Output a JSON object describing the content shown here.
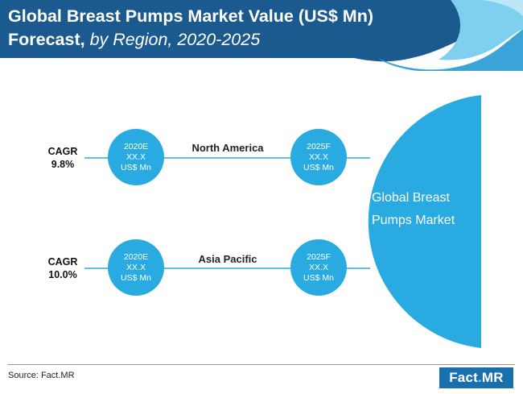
{
  "title": {
    "line1": "Global Breast Pumps Market Value (US$ Mn)",
    "line2_bold": "Forecast,",
    "line2_italic": " by Region, 2020-2025"
  },
  "market": {
    "label_line1": "Global Breast",
    "label_line2": "Pumps Market"
  },
  "rows": [
    {
      "region": "North America",
      "cagr_label": "CAGR",
      "cagr_value": "9.8%",
      "start": {
        "year": "2020E",
        "value": "XX.X",
        "unit": "US$ Mn"
      },
      "end": {
        "year": "2025F",
        "value": "XX.X",
        "unit": "US$ Mn"
      }
    },
    {
      "region": "Asia Pacific",
      "cagr_label": "CAGR",
      "cagr_value": "10.0%",
      "start": {
        "year": "2020E",
        "value": "XX.X",
        "unit": "US$ Mn"
      },
      "end": {
        "year": "2025F",
        "value": "XX.X",
        "unit": "US$ Mn"
      }
    }
  ],
  "footer": {
    "source": "Source: Fact.MR",
    "logo_fact": "Fact",
    "logo_dot": ".",
    "logo_mr": "MR"
  },
  "colors": {
    "header_dark": "#1a5a8f",
    "accent": "#29abe2",
    "light_wave": "#7fd0ef"
  }
}
